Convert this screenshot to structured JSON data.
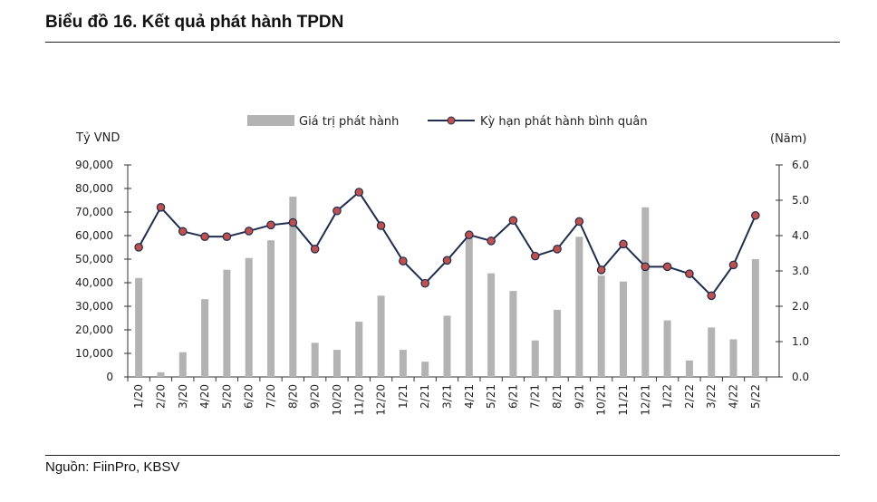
{
  "header": {
    "title": "Biểu đồ 16. Kết quả phát hành TPDN"
  },
  "footer": {
    "source": "Nguồn: FiinPro, KBSV"
  },
  "chart_data": {
    "type": "bar",
    "title": "",
    "categories": [
      "1/20",
      "2/20",
      "3/20",
      "4/20",
      "5/20",
      "6/20",
      "7/20",
      "8/20",
      "9/20",
      "10/20",
      "11/20",
      "12/20",
      "1/21",
      "2/21",
      "3/21",
      "4/21",
      "5/21",
      "6/21",
      "7/21",
      "8/21",
      "9/21",
      "10/21",
      "11/21",
      "12/21",
      "1/22",
      "2/22",
      "3/22",
      "4/22",
      "5/22"
    ],
    "series": [
      {
        "name": "Giá trị phát hành",
        "type": "bar",
        "axis": "left",
        "color": "#b3b3b3",
        "values": [
          42000,
          2000,
          10500,
          33000,
          45500,
          50500,
          58000,
          76500,
          14500,
          11500,
          23500,
          34500,
          11500,
          6500,
          26000,
          59000,
          44000,
          36500,
          15500,
          28500,
          59500,
          43000,
          40500,
          72000,
          24000,
          7000,
          21000,
          16000,
          50000
        ]
      },
      {
        "name": "Kỳ hạn phát hành bình quân",
        "type": "line",
        "axis": "right",
        "color": "#1f2d4e",
        "marker_color": "#c0504d",
        "values": [
          3.67,
          4.8,
          4.12,
          3.97,
          3.97,
          4.13,
          4.3,
          4.37,
          3.62,
          4.7,
          5.23,
          4.28,
          3.28,
          2.65,
          3.3,
          4.02,
          3.85,
          4.43,
          3.42,
          3.62,
          4.4,
          3.03,
          3.76,
          3.12,
          3.12,
          2.92,
          2.3,
          3.17,
          4.57
        ]
      }
    ],
    "ylabel": "Tỷ VND",
    "y2label": "(Năm)",
    "ylim": [
      0,
      90000
    ],
    "y2lim": [
      0,
      6
    ],
    "yticks": [
      "90,000",
      "80,000",
      "70,000",
      "60,000",
      "50,000",
      "40,000",
      "30,000",
      "20,000",
      "10,000",
      "0"
    ],
    "y2ticks": [
      "6.0",
      "5.0",
      "4.0",
      "3.0",
      "2.0",
      "1.0",
      "0.0"
    ],
    "grid": false,
    "legend_position": "top"
  }
}
